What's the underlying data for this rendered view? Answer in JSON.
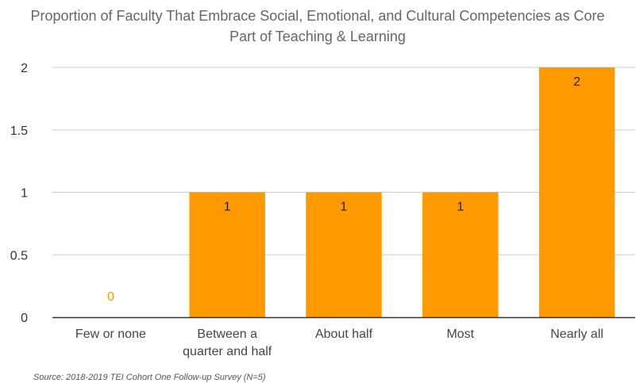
{
  "chart_data": {
    "type": "bar",
    "title_lines": [
      "Proportion of Faculty That Embrace Social, Emotional, and Cultural Competencies as Core",
      "Part of Teaching & Learning"
    ],
    "categories": [
      [
        "Few or none"
      ],
      [
        "Between a",
        "quarter and half"
      ],
      [
        "About half"
      ],
      [
        "Most"
      ],
      [
        "Nearly all"
      ]
    ],
    "values": [
      0,
      1,
      1,
      1,
      2
    ],
    "data_labels": [
      "0",
      "1",
      "1",
      "1",
      "2"
    ],
    "y_ticks": [
      0,
      0.5,
      1,
      1.5,
      2
    ],
    "y_tick_labels": [
      "0",
      "0.5",
      "1",
      "1.5",
      "2"
    ],
    "ylim": [
      0,
      2
    ],
    "grid": true,
    "legend": "none",
    "colors": {
      "bar": "#ff9900",
      "label_inside": "#222222",
      "label_zero": "#ff9900",
      "grid": "#cccccc",
      "axis": "#333333"
    },
    "source": "Source: 2018-2019 TEI Cohort One Follow-up Survey (N=5)"
  }
}
